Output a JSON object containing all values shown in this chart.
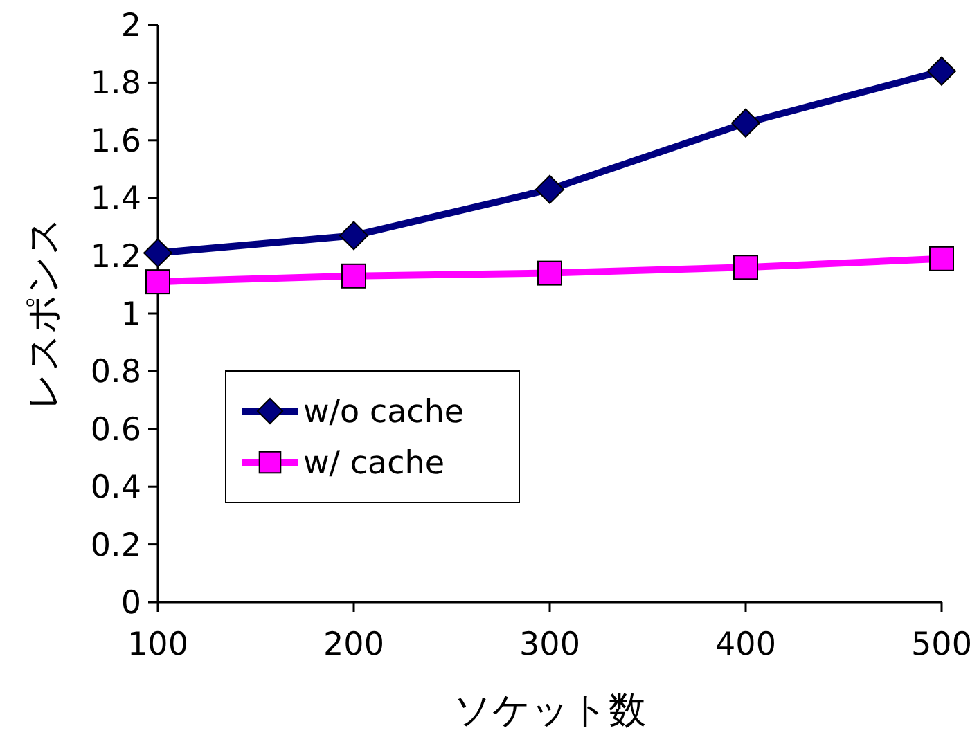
{
  "chart_data": {
    "type": "line",
    "xlabel": "ソケット数",
    "ylabel": "レスポンス",
    "x": [
      100,
      200,
      300,
      400,
      500
    ],
    "series": [
      {
        "name": "w/o cache",
        "color": "#000080",
        "marker": "diamond",
        "values": [
          1.21,
          1.27,
          1.43,
          1.66,
          1.84
        ]
      },
      {
        "name": "w/ cache",
        "color": "#ff00ff",
        "marker": "square",
        "values": [
          1.11,
          1.13,
          1.14,
          1.16,
          1.19
        ]
      }
    ],
    "xlim": [
      100,
      500
    ],
    "xticks": [
      100,
      200,
      300,
      400,
      500
    ],
    "ylim": [
      0,
      2
    ],
    "yticks": [
      0,
      {
        "value": 0.2,
        "label": "0.2"
      },
      {
        "value": 0.4,
        "label": "0.4"
      },
      {
        "value": 0.6,
        "label": "0.6"
      },
      {
        "value": 0.8,
        "label": "0.8"
      },
      1,
      {
        "value": 1.2,
        "label": "1.2"
      },
      {
        "value": 1.4,
        "label": "1.4"
      },
      {
        "value": 1.6,
        "label": "1.6"
      },
      {
        "value": 1.8,
        "label": "1.8"
      },
      2
    ],
    "grid": false,
    "legend": "center left",
    "line_style": "solid"
  }
}
